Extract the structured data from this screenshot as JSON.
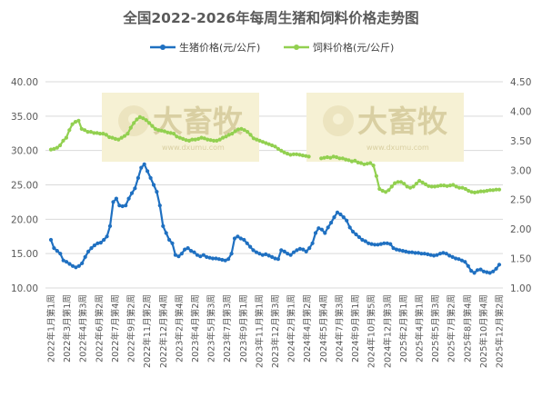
{
  "chart_data": {
    "type": "line",
    "title": "全国2022-2026年每周生猪和饲料价格走势图",
    "watermark": {
      "brand": "大畜牧",
      "url": "www.dxumu.com"
    },
    "colors": {
      "pig": "#1f70c1",
      "feed": "#92d050",
      "grid": "#d9d9d9",
      "watermark_bg": "#f6f1d4"
    },
    "y_left": {
      "min": 10,
      "max": 40,
      "ticks": [
        "10.00",
        "15.00",
        "20.00",
        "25.00",
        "30.00",
        "35.00",
        "40.00"
      ]
    },
    "y_right": {
      "min": 1,
      "max": 4.5,
      "ticks": [
        "1.00",
        "1.50",
        "2.00",
        "2.50",
        "3.00",
        "3.50",
        "4.00",
        "4.50"
      ]
    },
    "x_ticks": [
      "2022年1月第1周",
      "2022年3月第1周",
      "2022年4月第3周",
      "2022年6月第2周",
      "2022年7月第4周",
      "2022年9月第2周",
      "2022年11月第2周",
      "2022年12月第4周",
      "2023年2月第4周",
      "2023年4月第2周",
      "2023年5月第3周",
      "2023年7月第3周",
      "2023年9月第1周",
      "2023年11月第1周",
      "2023年12月第3周",
      "2024年2月第1周",
      "2024年4月第2周",
      "2024年5月第4周",
      "2024年7月第3周",
      "2024年9月第1周",
      "2024年10月第5周",
      "2024年12月第3周",
      "2025年2月第1周",
      "2025年4月第1周",
      "2025年5月第3周",
      "2025年7月第2周",
      "2025年8月第4周",
      "2025年10月第4周",
      "2025年12月第2周"
    ],
    "series": [
      {
        "name": "生猪价格(元/公斤)",
        "axis": "left",
        "values": [
          17.0,
          15.8,
          15.4,
          15.0,
          14.0,
          13.8,
          13.5,
          13.2,
          13.0,
          13.2,
          13.6,
          14.5,
          15.3,
          15.8,
          16.2,
          16.5,
          16.6,
          17.0,
          17.5,
          19.0,
          22.5,
          23.0,
          22.0,
          21.9,
          22.0,
          23.0,
          23.8,
          24.5,
          26.0,
          27.5,
          28.0,
          27.0,
          26.0,
          25.0,
          24.0,
          22.0,
          19.0,
          18.0,
          17.0,
          16.5,
          14.8,
          14.6,
          15.0,
          15.6,
          15.8,
          15.4,
          15.2,
          14.8,
          14.6,
          14.8,
          14.5,
          14.4,
          14.3,
          14.3,
          14.2,
          14.1,
          14.0,
          14.2,
          15.0,
          17.2,
          17.5,
          17.2,
          17.0,
          16.5,
          16.0,
          15.5,
          15.2,
          15.0,
          14.8,
          14.9,
          14.7,
          14.5,
          14.3,
          14.2,
          15.5,
          15.3,
          15.0,
          14.8,
          15.2,
          15.5,
          15.7,
          15.6,
          15.3,
          15.8,
          16.5,
          18.0,
          18.7,
          18.5,
          18.0,
          18.8,
          19.5,
          20.3,
          21.0,
          20.7,
          20.3,
          19.8,
          18.8,
          18.2,
          17.8,
          17.4,
          17.0,
          16.8,
          16.5,
          16.4,
          16.3,
          16.3,
          16.4,
          16.5,
          16.5,
          16.4,
          15.8,
          15.6,
          15.5,
          15.4,
          15.3,
          15.2,
          15.2,
          15.1,
          15.1,
          15.0,
          15.0,
          14.9,
          14.8,
          14.7,
          14.8,
          15.0,
          15.1,
          15.0,
          14.7,
          14.5,
          14.3,
          14.2,
          14.0,
          13.8,
          13.2,
          12.5,
          12.2,
          12.6,
          12.7,
          12.4,
          12.3,
          12.2,
          12.4,
          12.8,
          13.4
        ]
      },
      {
        "name": "饲料价格(元/公斤)",
        "axis": "right",
        "values": [
          3.35,
          3.36,
          3.38,
          3.42,
          3.5,
          3.55,
          3.68,
          3.78,
          3.82,
          3.84,
          3.7,
          3.68,
          3.65,
          3.65,
          3.63,
          3.63,
          3.62,
          3.62,
          3.6,
          3.56,
          3.55,
          3.53,
          3.52,
          3.55,
          3.58,
          3.62,
          3.72,
          3.8,
          3.86,
          3.9,
          3.88,
          3.85,
          3.8,
          3.75,
          3.7,
          3.68,
          3.67,
          3.66,
          3.64,
          3.63,
          3.62,
          3.57,
          3.55,
          3.53,
          3.51,
          3.5,
          3.52,
          3.52,
          3.53,
          3.55,
          3.54,
          3.52,
          3.51,
          3.5,
          3.5,
          3.52,
          3.55,
          3.57,
          3.6,
          3.62,
          3.66,
          3.69,
          3.7,
          3.68,
          3.65,
          3.6,
          3.54,
          3.52,
          3.5,
          3.48,
          3.46,
          3.44,
          3.42,
          3.4,
          3.36,
          3.33,
          3.3,
          3.28,
          3.26,
          3.27,
          3.27,
          3.26,
          3.25,
          3.24,
          3.23,
          null,
          null,
          null,
          3.2,
          3.21,
          3.22,
          3.21,
          3.23,
          3.22,
          3.2,
          3.2,
          3.18,
          3.17,
          3.15,
          3.16,
          3.13,
          3.12,
          3.1,
          3.11,
          3.12,
          3.08,
          2.9,
          2.68,
          2.65,
          2.63,
          2.66,
          2.72,
          2.78,
          2.8,
          2.8,
          2.77,
          2.72,
          2.7,
          2.72,
          2.77,
          2.82,
          2.79,
          2.76,
          2.73,
          2.72,
          2.72,
          2.73,
          2.74,
          2.74,
          2.73,
          2.74,
          2.75,
          2.72,
          2.7,
          2.7,
          2.68,
          2.65,
          2.63,
          2.62,
          2.63,
          2.64,
          2.64,
          2.65,
          2.66,
          2.66,
          2.67,
          2.67
        ]
      }
    ],
    "legend_position": "top",
    "grid": true
  }
}
